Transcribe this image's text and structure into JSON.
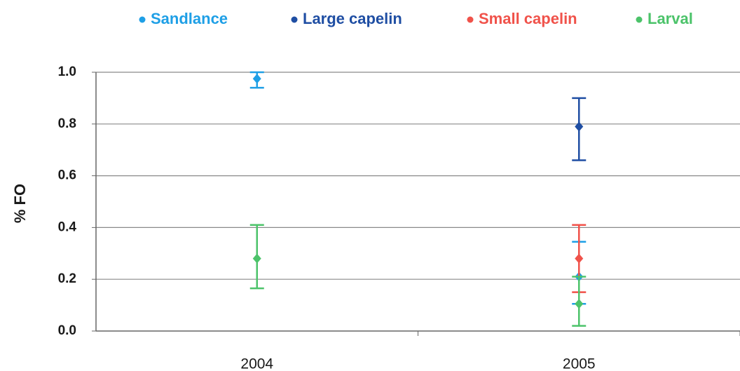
{
  "chart_data": {
    "type": "errorbar",
    "y_label": "% FO",
    "categories": [
      "2004",
      "2005"
    ],
    "ylim": [
      0,
      1.0
    ],
    "yticks": [
      {
        "value": 0,
        "label": "0.0"
      },
      0.2,
      0.4,
      0.6,
      0.8,
      {
        "value": 1.0,
        "label": "1.0"
      }
    ],
    "grid": true,
    "legend": "top",
    "series": [
      {
        "name": "Sandlance",
        "color": "#1e9fe6",
        "values": [
          0.975,
          0.21
        ],
        "lower": [
          0.94,
          0.105
        ],
        "upper": [
          1.0,
          0.345
        ]
      },
      {
        "name": "Large capelin",
        "color": "#1f4ea3",
        "values": [
          null,
          0.79
        ],
        "lower": [
          null,
          0.66
        ],
        "upper": [
          null,
          0.9
        ]
      },
      {
        "name": "Small capelin",
        "color": "#f0524a",
        "values": [
          null,
          0.28
        ],
        "lower": [
          null,
          0.15
        ],
        "upper": [
          null,
          0.41
        ]
      },
      {
        "name": "Larval",
        "color": "#4cc36a",
        "values": [
          0.28,
          0.105
        ],
        "lower": [
          0.165,
          0.02
        ],
        "upper": [
          0.41,
          0.21
        ]
      }
    ]
  }
}
